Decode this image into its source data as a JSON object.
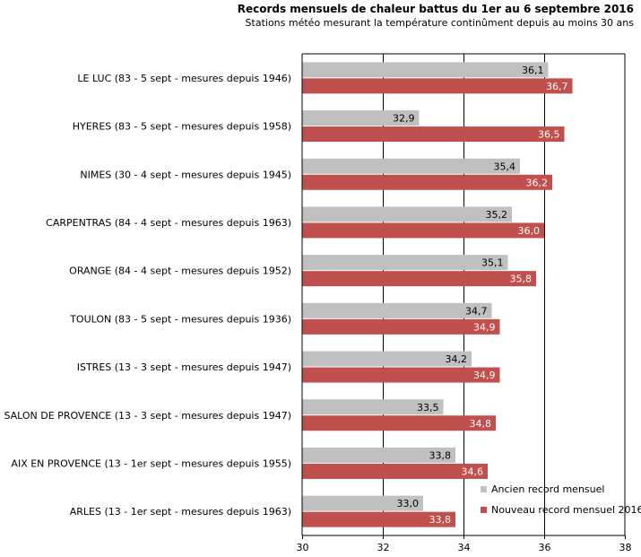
{
  "chart_data": {
    "type": "bar",
    "orientation": "horizontal",
    "title": "Records mensuels de chaleur battus du 1er au 6 septembre 2016",
    "subtitle": "Stations météo mesurant la température continûment depuis au moins 30 ans",
    "categories": [
      "LE LUC (83 - 5 sept - mesures depuis 1946)",
      "HYERES (83 - 5 sept - mesures depuis 1958)",
      "NIMES (30 - 4 sept - mesures depuis 1945)",
      "CARPENTRAS (84 - 4 sept - mesures depuis 1963)",
      "ORANGE (84 - 4 sept - mesures depuis 1952)",
      "TOULON (83 - 5 sept - mesures depuis 1936)",
      "ISTRES (13 - 3 sept - mesures depuis 1947)",
      "SALON DE PROVENCE (13 - 3 sept - mesures depuis 1947)",
      "AIX EN PROVENCE (13 - 1er sept - mesures depuis 1955)",
      "ARLES (13 - 1er sept - mesures depuis 1963)"
    ],
    "series": [
      {
        "name": "Ancien record mensuel",
        "color": "#c0c0c0",
        "values": [
          36.1,
          32.9,
          35.4,
          35.2,
          35.1,
          34.7,
          34.2,
          33.5,
          33.8,
          33.0
        ],
        "labels": [
          "36,1",
          "32,9",
          "35,4",
          "35,2",
          "35,1",
          "34,7",
          "34,2",
          "33,5",
          "33,8",
          "33,0"
        ]
      },
      {
        "name": "Nouveau record mensuel 2016",
        "color": "#c0504d",
        "values": [
          36.7,
          36.5,
          36.2,
          36.0,
          35.8,
          34.9,
          34.9,
          34.8,
          34.6,
          33.8
        ],
        "labels": [
          "36,7",
          "36,5",
          "36,2",
          "36,0",
          "35,8",
          "34,9",
          "34,9",
          "34,8",
          "34,6",
          "33,8"
        ]
      }
    ],
    "xlim": [
      30,
      38
    ],
    "xticks": [
      30,
      32,
      34,
      36,
      38
    ],
    "xtick_labels": [
      "30",
      "32",
      "34",
      "36",
      "38"
    ],
    "grid": true,
    "legend_position": "bottom-right"
  }
}
